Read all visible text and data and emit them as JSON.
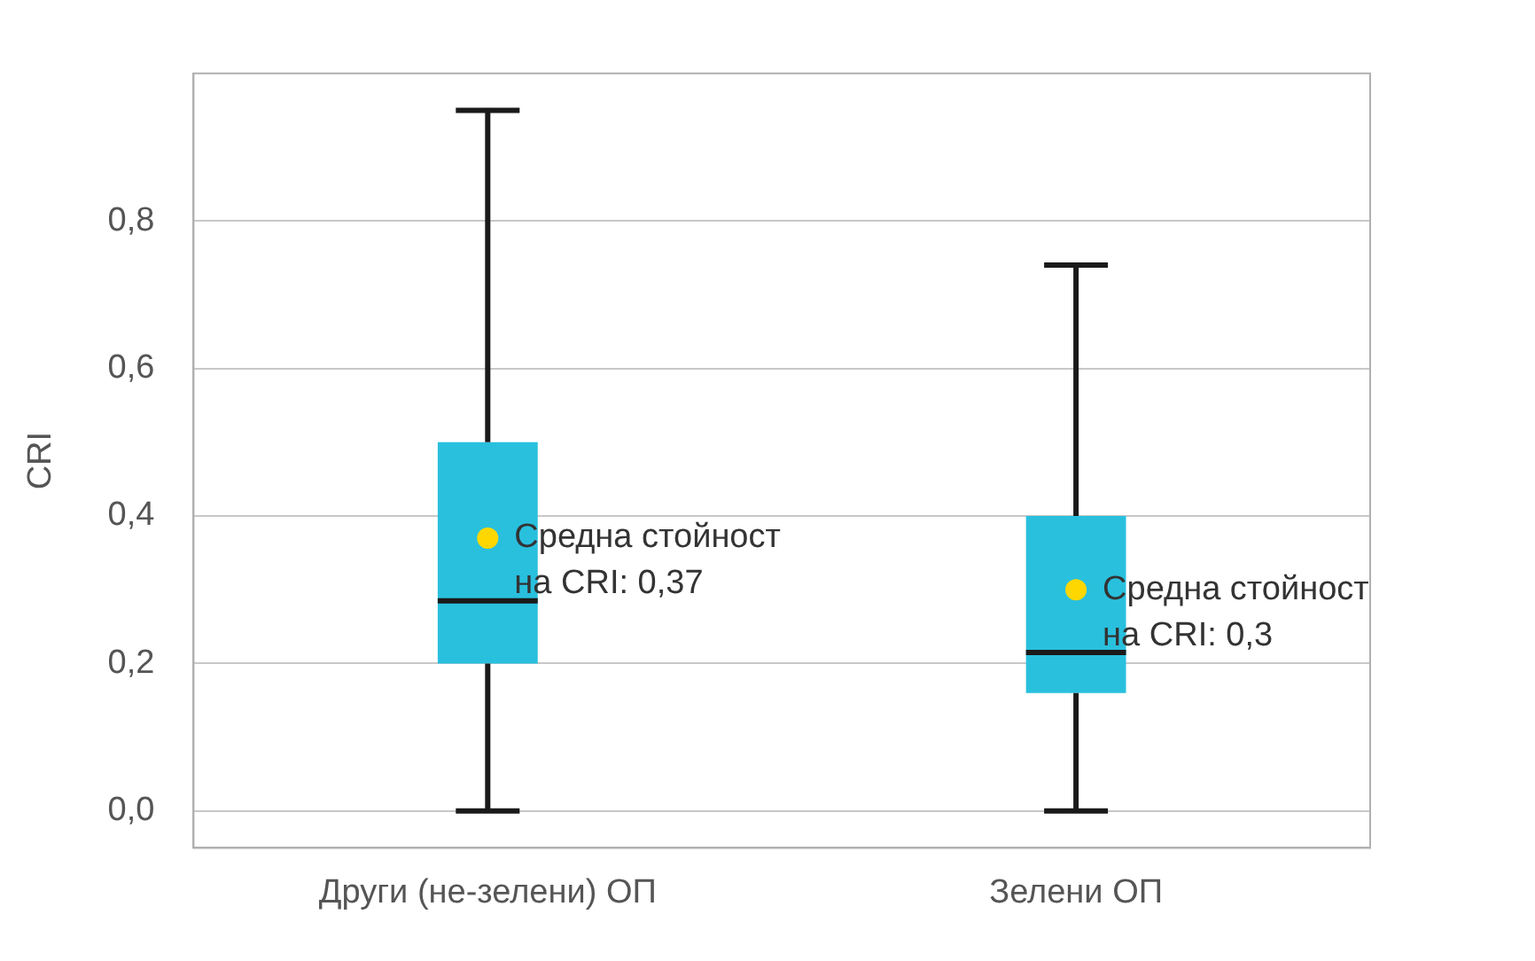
{
  "chart_data": {
    "type": "box",
    "ylabel": "CRI",
    "categories": [
      "Други (не-зелени) ОП",
      "Зелени ОП"
    ],
    "series": [
      {
        "color": "#29c0de",
        "boxes": [
          {
            "low": 0,
            "q1": 0.2,
            "median": 0.285,
            "q3": 0.5,
            "high": 0.95,
            "mean": 0.37
          },
          {
            "low": 0,
            "q1": 0.16,
            "median": 0.215,
            "q3": 0.4,
            "high": 0.74,
            "mean": 0.3
          }
        ]
      }
    ],
    "ylim": [
      -0.05,
      1.0
    ],
    "yticks": [
      {
        "value": 0,
        "label": "0,0"
      },
      {
        "value": 0.2,
        "label": "0,2"
      },
      {
        "value": 0.4,
        "label": "0,4"
      },
      {
        "value": 0.6,
        "label": "0,6"
      },
      {
        "value": 0.8,
        "label": "0,8"
      }
    ],
    "grid": "y",
    "legend": false,
    "annotations": [
      "Средна стойност\nна CRI: 0,37",
      "Средна стойност\nна CRI: 0,3"
    ]
  }
}
